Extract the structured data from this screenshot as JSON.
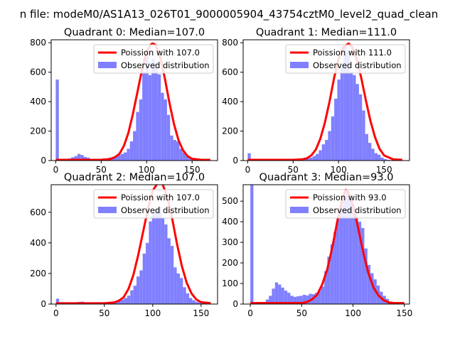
{
  "figure": {
    "suptitle": "n file: modeM0/AS1A13_026T01_9000005904_43754cztM0_level2_quad_clean"
  },
  "colors": {
    "hist": "#8080ff",
    "poisson": "#ff0000"
  },
  "chart_data": [
    {
      "type": "bar",
      "title": "Quadrant 0: Median=107.0",
      "xticks": [
        0,
        50,
        100,
        150
      ],
      "yticks": [
        0,
        200,
        400,
        600,
        800
      ],
      "xlim": [
        -5,
        178
      ],
      "ylim": [
        0,
        820
      ],
      "bin_width": 3.4,
      "legend": {
        "placement": "upper right",
        "entries": [
          "Poission with 107.0",
          "Observed distribution"
        ]
      },
      "hist": {
        "name": "Observed distribution",
        "x": [
          0,
          3.4,
          6.8,
          10.2,
          13.6,
          17,
          20.4,
          23.8,
          27.2,
          30.6,
          34,
          37.4,
          40.8,
          44.2,
          47.6,
          51,
          54.4,
          57.8,
          61.2,
          64.6,
          68,
          71.4,
          74.8,
          78.2,
          81.6,
          85,
          88.4,
          91.8,
          95.2,
          98.6,
          102,
          105.4,
          108.8,
          112.2,
          115.6,
          119,
          122.4,
          125.8,
          129.2,
          132.6,
          136,
          139.4,
          142.8,
          146.2,
          149.6,
          153,
          156.4,
          159.8,
          163.2
        ],
        "counts": [
          550,
          12,
          8,
          12,
          15,
          22,
          30,
          45,
          38,
          25,
          20,
          12,
          10,
          8,
          6,
          15,
          8,
          20,
          25,
          30,
          38,
          45,
          55,
          80,
          130,
          200,
          330,
          415,
          600,
          740,
          580,
          690,
          665,
          585,
          460,
          415,
          310,
          170,
          140,
          130,
          80,
          55,
          30,
          15,
          8,
          5,
          3,
          2,
          1
        ]
      },
      "poisson": {
        "name": "Poission with 107.0",
        "x": [
          0,
          10,
          20,
          30,
          40,
          50,
          60,
          65,
          70,
          75,
          80,
          85,
          90,
          95,
          100,
          105,
          107,
          110,
          115,
          120,
          125,
          130,
          135,
          140,
          145,
          150,
          160,
          170
        ],
        "y": [
          5,
          5,
          5,
          5,
          5,
          5,
          10,
          22,
          45,
          100,
          190,
          320,
          470,
          620,
          740,
          790,
          795,
          785,
          700,
          560,
          395,
          250,
          140,
          70,
          30,
          12,
          5,
          5
        ]
      }
    },
    {
      "type": "bar",
      "title": "Quadrant 1: Median=111.0",
      "xticks": [
        0,
        50,
        100,
        150
      ],
      "yticks": [
        0,
        200,
        400,
        600,
        800
      ],
      "xlim": [
        -5,
        178
      ],
      "ylim": [
        0,
        820
      ],
      "bin_width": 3.4,
      "legend": {
        "placement": "upper right",
        "entries": [
          "Poission with 111.0",
          "Observed distribution"
        ]
      },
      "hist": {
        "name": "Observed distribution",
        "x": [
          0,
          3.4,
          6.8,
          10.2,
          13.6,
          17,
          20.4,
          23.8,
          27.2,
          30.6,
          34,
          37.4,
          40.8,
          44.2,
          47.6,
          51,
          54.4,
          57.8,
          61.2,
          64.6,
          68,
          71.4,
          74.8,
          78.2,
          81.6,
          85,
          88.4,
          91.8,
          95.2,
          98.6,
          102,
          105.4,
          108.8,
          112.2,
          115.6,
          119,
          122.4,
          125.8,
          129.2,
          132.6,
          136,
          139.4,
          142.8,
          146.2,
          149.6,
          153,
          156.4,
          159.8,
          163.2
        ],
        "counts": [
          50,
          5,
          4,
          4,
          5,
          6,
          6,
          8,
          7,
          6,
          5,
          4,
          4,
          4,
          3,
          3,
          4,
          6,
          10,
          15,
          20,
          30,
          45,
          70,
          110,
          140,
          200,
          300,
          420,
          550,
          640,
          780,
          740,
          600,
          580,
          520,
          450,
          340,
          180,
          120,
          80,
          50,
          40,
          20,
          10,
          5,
          3,
          2,
          1
        ]
      },
      "poisson": {
        "name": "Poission with 111.0",
        "x": [
          0,
          10,
          20,
          30,
          40,
          50,
          60,
          65,
          70,
          75,
          80,
          85,
          90,
          95,
          100,
          105,
          111,
          115,
          120,
          125,
          130,
          135,
          140,
          145,
          150,
          160,
          170
        ],
        "y": [
          5,
          5,
          5,
          5,
          5,
          5,
          8,
          15,
          35,
          75,
          150,
          260,
          400,
          560,
          690,
          770,
          795,
          770,
          690,
          560,
          410,
          270,
          160,
          80,
          35,
          8,
          5
        ]
      }
    },
    {
      "type": "bar",
      "title": "Quadrant 2: Median=107.0",
      "xticks": [
        0,
        50,
        100,
        150
      ],
      "yticks": [
        0,
        200,
        400,
        600
      ],
      "xlim": [
        -5,
        167
      ],
      "ylim": [
        0,
        780
      ],
      "bin_width": 3.2,
      "legend": {
        "placement": "upper right",
        "entries": [
          "Poission with 107.0",
          "Observed distribution"
        ]
      },
      "hist": {
        "name": "Observed distribution",
        "x": [
          0,
          3.2,
          6.4,
          9.6,
          12.8,
          16,
          19.2,
          22.4,
          25.6,
          28.8,
          32,
          35.2,
          38.4,
          41.6,
          44.8,
          48,
          51.2,
          54.4,
          57.6,
          60.8,
          64,
          67.2,
          70.4,
          73.6,
          76.8,
          80,
          83.2,
          86.4,
          89.6,
          92.8,
          96,
          99.2,
          102.4,
          105.6,
          108.8,
          112,
          115.2,
          118.4,
          121.6,
          124.8,
          128,
          131.2,
          134.4,
          137.6,
          140.8,
          144,
          147.2,
          150.4,
          153.6,
          156.8
        ],
        "counts": [
          35,
          6,
          5,
          6,
          8,
          10,
          12,
          14,
          16,
          12,
          10,
          8,
          6,
          5,
          5,
          6,
          8,
          10,
          15,
          20,
          25,
          30,
          40,
          55,
          90,
          120,
          180,
          220,
          330,
          400,
          540,
          600,
          620,
          640,
          560,
          520,
          430,
          380,
          240,
          200,
          170,
          110,
          70,
          40,
          25,
          15,
          10,
          8,
          5,
          3
        ]
      },
      "poisson": {
        "name": "Poission with 107.0",
        "x": [
          0,
          10,
          20,
          30,
          40,
          50,
          60,
          65,
          70,
          75,
          80,
          85,
          90,
          95,
          100,
          105,
          107,
          110,
          115,
          120,
          125,
          130,
          135,
          140,
          145,
          150,
          160
        ],
        "y": [
          5,
          5,
          5,
          5,
          5,
          5,
          10,
          22,
          45,
          100,
          190,
          320,
          470,
          620,
          740,
          790,
          795,
          785,
          700,
          560,
          395,
          250,
          140,
          70,
          30,
          12,
          5
        ]
      }
    },
    {
      "type": "bar",
      "title": "Quadrant 3: Median=93.0",
      "xticks": [
        0,
        50,
        100,
        150
      ],
      "yticks": [
        0,
        100,
        200,
        300,
        400,
        500
      ],
      "xlim": [
        -7,
        155
      ],
      "ylim": [
        0,
        580
      ],
      "bin_width": 3.0,
      "legend": {
        "placement": "upper right",
        "entries": [
          "Poission with 93.0",
          "Observed distribution"
        ]
      },
      "hist": {
        "name": "Observed distribution",
        "x": [
          0,
          3,
          6,
          9,
          12,
          15,
          18,
          21,
          24,
          27,
          30,
          33,
          36,
          39,
          42,
          45,
          48,
          51,
          54,
          57,
          60,
          63,
          66,
          69,
          72,
          75,
          78,
          81,
          84,
          87,
          90,
          93,
          96,
          99,
          102,
          105,
          108,
          111,
          114,
          117,
          120,
          123,
          126,
          129,
          132,
          135,
          138,
          141,
          144
        ],
        "counts": [
          580,
          8,
          5,
          6,
          10,
          22,
          40,
          75,
          105,
          95,
          80,
          65,
          55,
          40,
          35,
          38,
          40,
          45,
          42,
          50,
          48,
          55,
          70,
          85,
          160,
          230,
          290,
          350,
          420,
          480,
          520,
          550,
          510,
          480,
          430,
          400,
          370,
          270,
          190,
          150,
          120,
          90,
          60,
          40,
          25,
          12,
          6,
          3,
          1
        ]
      },
      "poisson": {
        "name": "Poission with 93.0",
        "x": [
          0,
          10,
          20,
          30,
          40,
          50,
          55,
          60,
          65,
          70,
          75,
          80,
          85,
          90,
          93,
          95,
          100,
          105,
          110,
          115,
          120,
          125,
          130,
          135,
          140,
          150
        ],
        "y": [
          5,
          5,
          5,
          5,
          5,
          5,
          10,
          22,
          45,
          95,
          170,
          280,
          410,
          520,
          555,
          545,
          480,
          370,
          250,
          150,
          80,
          40,
          18,
          8,
          5,
          5
        ]
      }
    }
  ]
}
